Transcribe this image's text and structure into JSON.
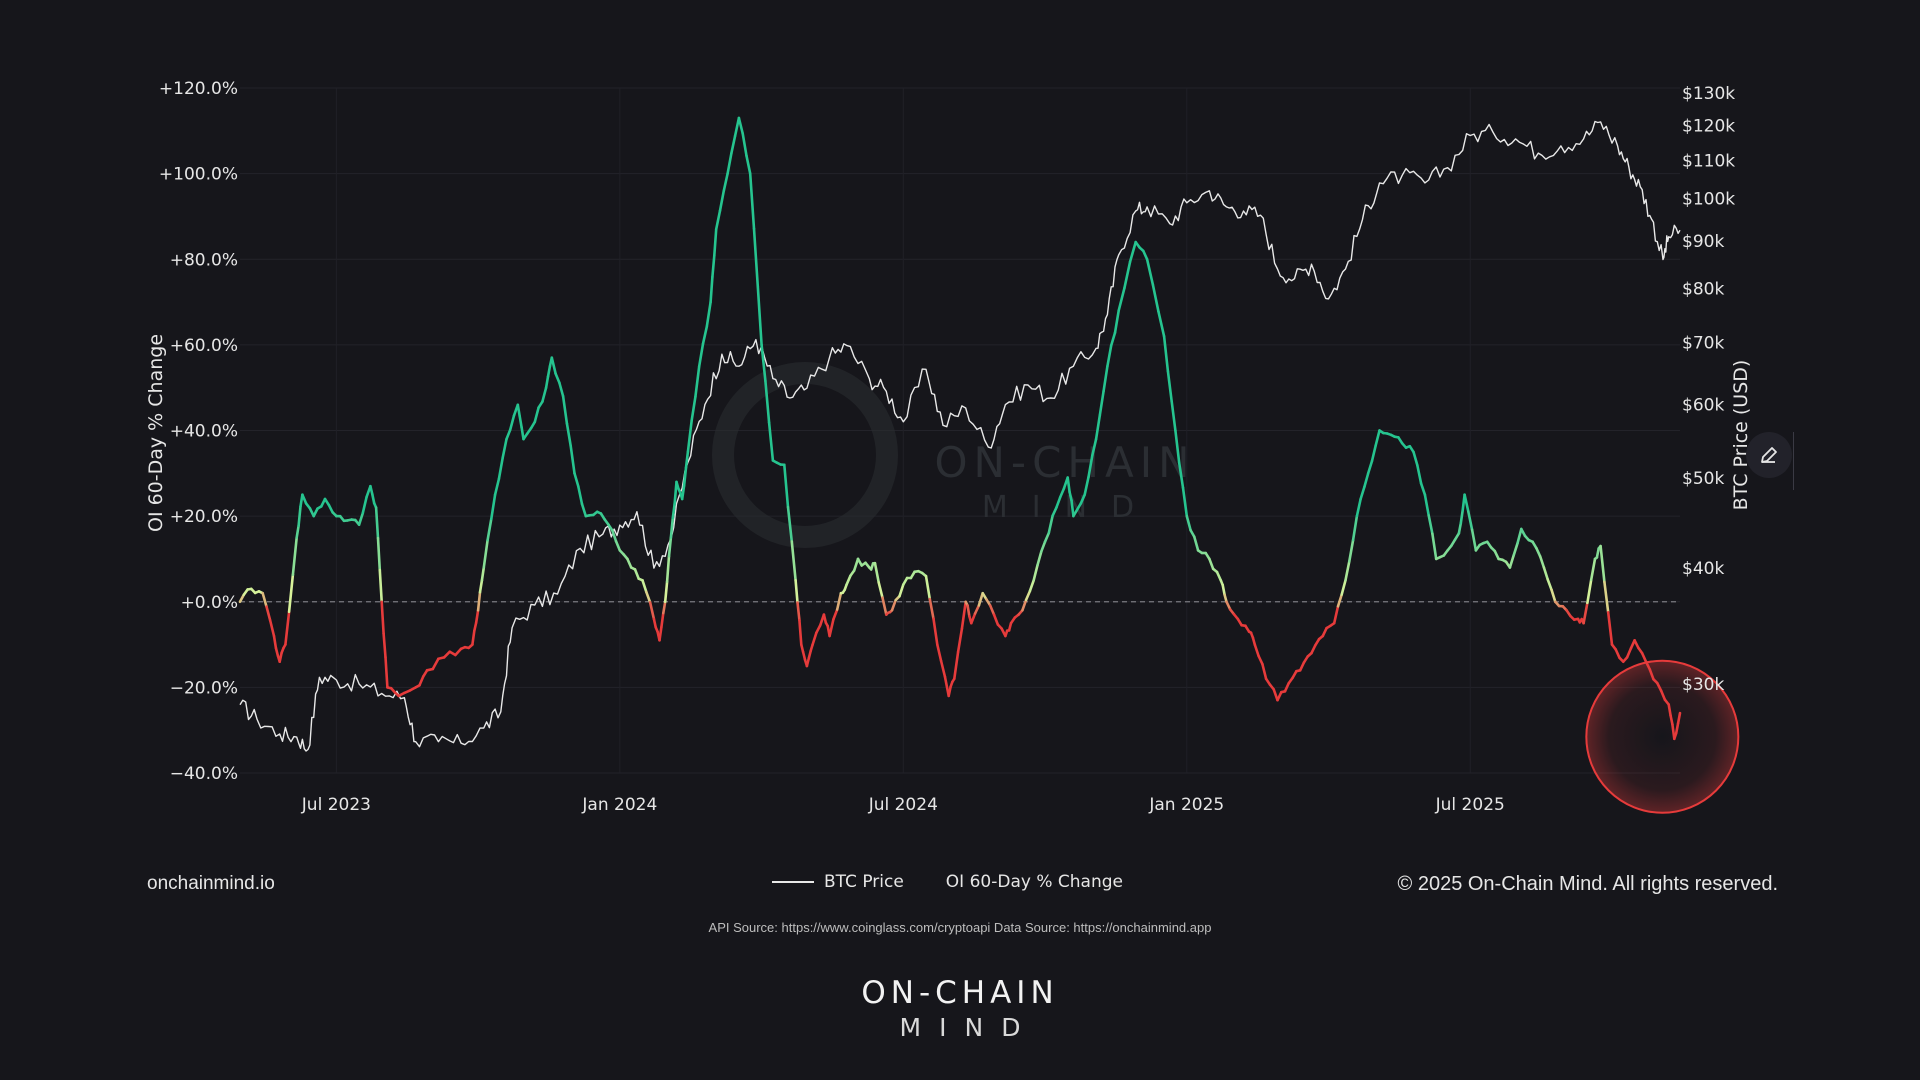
{
  "chart_data": {
    "type": "line",
    "y_left": {
      "label": "OI 60-Day % Change",
      "range": [
        -40,
        120
      ],
      "ticks": [
        120,
        100,
        80,
        60,
        40,
        20,
        0,
        -20,
        -40
      ],
      "tick_labels": [
        "+120.0%",
        "+100.0%",
        "+80.0%",
        "+60.0%",
        "+40.0%",
        "+20.0%",
        "+0.0%",
        "−20.0%",
        "−40.0%"
      ]
    },
    "y_right": {
      "label": "BTC Price (USD)",
      "scale": "log",
      "ticks": [
        130000,
        120000,
        110000,
        100000,
        90000,
        80000,
        70000,
        60000,
        50000,
        40000,
        30000
      ],
      "tick_labels": [
        "$130k",
        "$120k",
        "$110k",
        "$100k",
        "$90k",
        "$80k",
        "$70k",
        "$60k",
        "$50k",
        "$40k",
        "$30k"
      ]
    },
    "x_axis": {
      "range": [
        2023.33,
        2025.87
      ],
      "ticks": [
        2023.5,
        2024.0,
        2024.5,
        2025.0,
        2025.5
      ],
      "tick_labels": [
        "Jul 2023",
        "Jan 2024",
        "Jul 2024",
        "Jan 2025",
        "Jul 2025"
      ]
    },
    "series": [
      {
        "name": "BTC Price",
        "axis": "right",
        "color": "#e8e8e8",
        "points": [
          [
            2023.33,
            28500
          ],
          [
            2023.36,
            27500
          ],
          [
            2023.4,
            26500
          ],
          [
            2023.43,
            26300
          ],
          [
            2023.45,
            25500
          ],
          [
            2023.47,
            30500
          ],
          [
            2023.5,
            30300
          ],
          [
            2023.54,
            30000
          ],
          [
            2023.58,
            29300
          ],
          [
            2023.62,
            29000
          ],
          [
            2023.64,
            26000
          ],
          [
            2023.68,
            26000
          ],
          [
            2023.72,
            25900
          ],
          [
            2023.76,
            26900
          ],
          [
            2023.79,
            28000
          ],
          [
            2023.81,
            34500
          ],
          [
            2023.85,
            36500
          ],
          [
            2023.89,
            37500
          ],
          [
            2023.93,
            42000
          ],
          [
            2023.97,
            43500
          ],
          [
            2024.0,
            44500
          ],
          [
            2024.03,
            46000
          ],
          [
            2024.06,
            40000
          ],
          [
            2024.09,
            43000
          ],
          [
            2024.12,
            52000
          ],
          [
            2024.15,
            60000
          ],
          [
            2024.18,
            68000
          ],
          [
            2024.21,
            66000
          ],
          [
            2024.24,
            70500
          ],
          [
            2024.27,
            64000
          ],
          [
            2024.3,
            61000
          ],
          [
            2024.33,
            62500
          ],
          [
            2024.37,
            67500
          ],
          [
            2024.4,
            69500
          ],
          [
            2024.44,
            64000
          ],
          [
            2024.47,
            62000
          ],
          [
            2024.5,
            57500
          ],
          [
            2024.54,
            65500
          ],
          [
            2024.57,
            57000
          ],
          [
            2024.61,
            59500
          ],
          [
            2024.65,
            54000
          ],
          [
            2024.68,
            60000
          ],
          [
            2024.72,
            63000
          ],
          [
            2024.76,
            61000
          ],
          [
            2024.8,
            66000
          ],
          [
            2024.84,
            69000
          ],
          [
            2024.86,
            75000
          ],
          [
            2024.88,
            87000
          ],
          [
            2024.91,
            97000
          ],
          [
            2024.93,
            98000
          ],
          [
            2024.97,
            94000
          ],
          [
            2025.0,
            99000
          ],
          [
            2025.04,
            102000
          ],
          [
            2025.07,
            98000
          ],
          [
            2025.1,
            97000
          ],
          [
            2025.13,
            96000
          ],
          [
            2025.16,
            84000
          ],
          [
            2025.19,
            82000
          ],
          [
            2025.22,
            85000
          ],
          [
            2025.25,
            78000
          ],
          [
            2025.28,
            84000
          ],
          [
            2025.31,
            95000
          ],
          [
            2025.34,
            104000
          ],
          [
            2025.38,
            106000
          ],
          [
            2025.42,
            104000
          ],
          [
            2025.46,
            108000
          ],
          [
            2025.5,
            117000
          ],
          [
            2025.54,
            118000
          ],
          [
            2025.58,
            116000
          ],
          [
            2025.62,
            112000
          ],
          [
            2025.66,
            114000
          ],
          [
            2025.7,
            116000
          ],
          [
            2025.73,
            121000
          ],
          [
            2025.76,
            114000
          ],
          [
            2025.78,
            108000
          ],
          [
            2025.8,
            103000
          ],
          [
            2025.82,
            95000
          ],
          [
            2025.84,
            86000
          ],
          [
            2025.85,
            91000
          ],
          [
            2025.87,
            92500
          ]
        ]
      },
      {
        "name": "OI 60-Day % Change",
        "axis": "left",
        "color_positive": "#26c48f",
        "color_neutral": "#d8f29a",
        "color_negative": "#e63b3b",
        "points": [
          [
            2023.33,
            0
          ],
          [
            2023.35,
            3
          ],
          [
            2023.37,
            2
          ],
          [
            2023.39,
            -8
          ],
          [
            2023.4,
            -14
          ],
          [
            2023.41,
            -10
          ],
          [
            2023.43,
            15
          ],
          [
            2023.44,
            25
          ],
          [
            2023.46,
            20
          ],
          [
            2023.48,
            24
          ],
          [
            2023.5,
            20
          ],
          [
            2023.52,
            19
          ],
          [
            2023.54,
            18
          ],
          [
            2023.56,
            27
          ],
          [
            2023.57,
            22
          ],
          [
            2023.58,
            0
          ],
          [
            2023.59,
            -20
          ],
          [
            2023.61,
            -22
          ],
          [
            2023.64,
            -20
          ],
          [
            2023.66,
            -16
          ],
          [
            2023.69,
            -13
          ],
          [
            2023.72,
            -11
          ],
          [
            2023.74,
            -10
          ],
          [
            2023.75,
            -2
          ],
          [
            2023.76,
            8
          ],
          [
            2023.78,
            25
          ],
          [
            2023.8,
            38
          ],
          [
            2023.82,
            46
          ],
          [
            2023.83,
            38
          ],
          [
            2023.85,
            42
          ],
          [
            2023.87,
            50
          ],
          [
            2023.88,
            57
          ],
          [
            2023.9,
            48
          ],
          [
            2023.92,
            30
          ],
          [
            2023.94,
            20
          ],
          [
            2023.96,
            21
          ],
          [
            2023.98,
            18
          ],
          [
            2024.0,
            12
          ],
          [
            2024.02,
            8
          ],
          [
            2024.04,
            5
          ],
          [
            2024.06,
            -4
          ],
          [
            2024.07,
            -9
          ],
          [
            2024.08,
            0
          ],
          [
            2024.09,
            15
          ],
          [
            2024.1,
            28
          ],
          [
            2024.11,
            24
          ],
          [
            2024.12,
            35
          ],
          [
            2024.14,
            55
          ],
          [
            2024.16,
            70
          ],
          [
            2024.17,
            87
          ],
          [
            2024.19,
            100
          ],
          [
            2024.21,
            113
          ],
          [
            2024.23,
            100
          ],
          [
            2024.25,
            60
          ],
          [
            2024.27,
            33
          ],
          [
            2024.29,
            32
          ],
          [
            2024.31,
            5
          ],
          [
            2024.32,
            -10
          ],
          [
            2024.33,
            -15
          ],
          [
            2024.34,
            -10
          ],
          [
            2024.36,
            -3
          ],
          [
            2024.37,
            -8
          ],
          [
            2024.39,
            2
          ],
          [
            2024.4,
            4
          ],
          [
            2024.42,
            10
          ],
          [
            2024.44,
            8
          ],
          [
            2024.45,
            9
          ],
          [
            2024.47,
            -3
          ],
          [
            2024.48,
            -2
          ],
          [
            2024.5,
            4
          ],
          [
            2024.52,
            7
          ],
          [
            2024.54,
            6
          ],
          [
            2024.56,
            -10
          ],
          [
            2024.58,
            -22
          ],
          [
            2024.59,
            -18
          ],
          [
            2024.61,
            0
          ],
          [
            2024.62,
            -5
          ],
          [
            2024.64,
            2
          ],
          [
            2024.66,
            -3
          ],
          [
            2024.68,
            -8
          ],
          [
            2024.69,
            -5
          ],
          [
            2024.71,
            -2
          ],
          [
            2024.73,
            5
          ],
          [
            2024.75,
            14
          ],
          [
            2024.77,
            22
          ],
          [
            2024.79,
            29
          ],
          [
            2024.8,
            20
          ],
          [
            2024.82,
            25
          ],
          [
            2024.84,
            38
          ],
          [
            2024.86,
            55
          ],
          [
            2024.88,
            68
          ],
          [
            2024.91,
            84
          ],
          [
            2024.93,
            80
          ],
          [
            2024.96,
            62
          ],
          [
            2024.98,
            40
          ],
          [
            2025.0,
            20
          ],
          [
            2025.02,
            12
          ],
          [
            2025.04,
            10
          ],
          [
            2025.06,
            5
          ],
          [
            2025.07,
            0
          ],
          [
            2025.09,
            -4
          ],
          [
            2025.11,
            -7
          ],
          [
            2025.12,
            -10
          ],
          [
            2025.14,
            -18
          ],
          [
            2025.16,
            -23
          ],
          [
            2025.18,
            -19
          ],
          [
            2025.2,
            -16
          ],
          [
            2025.22,
            -12
          ],
          [
            2025.24,
            -8
          ],
          [
            2025.26,
            -5
          ],
          [
            2025.28,
            5
          ],
          [
            2025.3,
            20
          ],
          [
            2025.32,
            30
          ],
          [
            2025.34,
            40
          ],
          [
            2025.36,
            39
          ],
          [
            2025.38,
            37
          ],
          [
            2025.4,
            35
          ],
          [
            2025.42,
            25
          ],
          [
            2025.44,
            10
          ],
          [
            2025.46,
            12
          ],
          [
            2025.48,
            16
          ],
          [
            2025.49,
            25
          ],
          [
            2025.51,
            12
          ],
          [
            2025.53,
            14
          ],
          [
            2025.55,
            10
          ],
          [
            2025.57,
            8
          ],
          [
            2025.59,
            17
          ],
          [
            2025.61,
            14
          ],
          [
            2025.63,
            8
          ],
          [
            2025.65,
            0
          ],
          [
            2025.67,
            -2
          ],
          [
            2025.69,
            -4
          ],
          [
            2025.7,
            -5
          ],
          [
            2025.72,
            10
          ],
          [
            2025.73,
            13
          ],
          [
            2025.75,
            -10
          ],
          [
            2025.77,
            -14
          ],
          [
            2025.79,
            -9
          ],
          [
            2025.81,
            -14
          ],
          [
            2025.83,
            -19
          ],
          [
            2025.85,
            -24
          ],
          [
            2025.86,
            -32
          ],
          [
            2025.87,
            -26
          ]
        ]
      }
    ],
    "reference_line": {
      "axis": "left",
      "value": 0,
      "style": "dashed"
    },
    "highlight": {
      "type": "circle",
      "x": 2025.86,
      "y": -32,
      "color": "#e63b3b"
    },
    "watermark": [
      "ON-CHAIN",
      "MIND"
    ],
    "legend_position": "bottom-center"
  },
  "footer": {
    "site": "onchainmind.io",
    "copyright": "© 2025 On-Chain Mind. All rights reserved.",
    "legend_btc": "BTC Price",
    "legend_oi": "OI 60-Day % Change",
    "source": "API Source: https://www.coinglass.com/cryptoapi Data Source: https://onchainmind.app",
    "brand_top": "ON-CHAIN",
    "brand_bottom": "MIND"
  },
  "icons": {
    "edit": "pencil-icon"
  }
}
